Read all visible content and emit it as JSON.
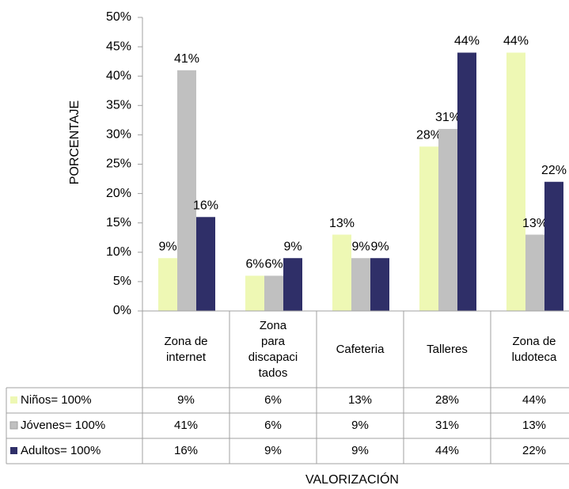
{
  "chart_data": {
    "type": "bar",
    "ylabel": "PORCENTAJE",
    "xlabel": "VALORIZACIÓN",
    "categories": [
      "Zona de internet",
      "Zona para discapacitados",
      "Cafeteria",
      "Talleres",
      "Zona de ludoteca"
    ],
    "series": [
      {
        "name": "Niños= 100%",
        "color": "#eef8b4",
        "values": [
          9,
          6,
          13,
          28,
          44
        ],
        "value_labels": [
          "9%",
          "6%",
          "13%",
          "28%",
          "44%"
        ]
      },
      {
        "name": "Jóvenes= 100%",
        "color": "#c0c0c0",
        "values": [
          41,
          6,
          9,
          31,
          13
        ],
        "value_labels": [
          "41%",
          "6%",
          "9%",
          "31%",
          "13%"
        ]
      },
      {
        "name": "Adultos= 100%",
        "color": "#2f2f68",
        "values": [
          16,
          9,
          9,
          44,
          22
        ],
        "value_labels": [
          "16%",
          "9%",
          "9%",
          "44%",
          "22%"
        ]
      }
    ],
    "ylim": [
      0,
      50
    ],
    "yticks": [
      {
        "value": 0,
        "label": "0%"
      },
      {
        "value": 5,
        "label": "5%"
      },
      {
        "value": 10,
        "label": "10%"
      },
      {
        "value": 15,
        "label": "15%"
      },
      {
        "value": 20,
        "label": "20%"
      },
      {
        "value": 25,
        "label": "25%"
      },
      {
        "value": 30,
        "label": "30%"
      },
      {
        "value": 35,
        "label": "35%"
      },
      {
        "value": 40,
        "label": "40%"
      },
      {
        "value": 45,
        "label": "45%"
      },
      {
        "value": 50,
        "label": "50%"
      }
    ],
    "grid": false,
    "data_table": true
  }
}
